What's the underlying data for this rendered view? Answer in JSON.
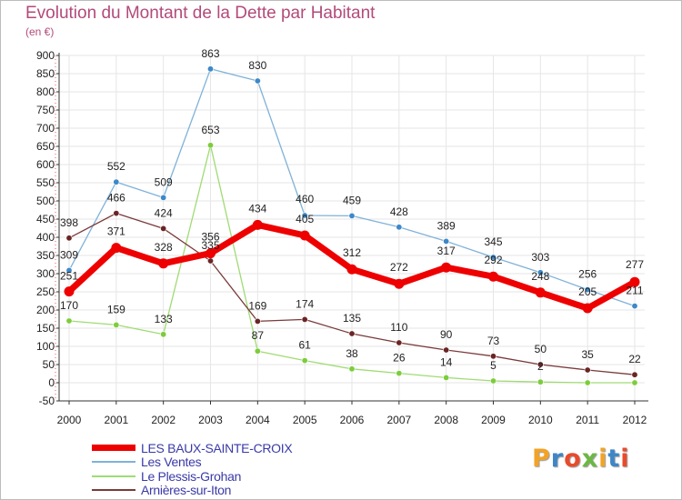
{
  "header": {
    "title": "Evolution du Montant de la Dette par Habitant",
    "subtitle": "(en €)"
  },
  "logo": {
    "text": "Proxiti",
    "letter_colors": [
      "#f2a326",
      "#3e86c8",
      "#e84b2c",
      "#6cb843",
      "#f2a326",
      "#3e86c8",
      "#e84b2c"
    ]
  },
  "colors": {
    "axis": "#333333",
    "grid": "#e6e6e6",
    "tick_text": "#222222",
    "dotted_axis": "#e85a5a"
  },
  "chart_data": {
    "type": "line",
    "title": "Evolution du Montant de la Dette par Habitant",
    "subtitle": "(en €)",
    "xlabel": "",
    "ylabel": "",
    "x": [
      "2000",
      "2001",
      "2002",
      "2003",
      "2004",
      "2005",
      "2006",
      "2007",
      "2008",
      "2009",
      "2010",
      "2011",
      "2012"
    ],
    "ylim": [
      -50,
      900
    ],
    "yticks": [
      -50,
      0,
      50,
      100,
      150,
      200,
      250,
      300,
      350,
      400,
      450,
      500,
      550,
      600,
      650,
      700,
      750,
      800,
      850,
      900
    ],
    "grid": true,
    "legend_position": "bottom-left",
    "series": [
      {
        "name": "Les Ventes",
        "color": "#7fb2d9",
        "marker_color": "#3d88c9",
        "line_width": 1.3,
        "marker_radius": 3.2,
        "values": [
          309,
          552,
          509,
          863,
          830,
          460,
          459,
          428,
          389,
          345,
          303,
          256,
          211
        ]
      },
      {
        "name": "Le Plessis-Grohan",
        "color": "#a0db74",
        "marker_color": "#7ccd3c",
        "line_width": 1.3,
        "marker_radius": 3.2,
        "values": [
          170,
          159,
          133,
          653,
          87,
          61,
          38,
          26,
          14,
          5,
          2,
          0,
          0
        ]
      },
      {
        "name": "Arnières-sur-Iton",
        "color": "#7a3a3a",
        "marker_color": "#6b2424",
        "line_width": 1.3,
        "marker_radius": 3.2,
        "values": [
          398,
          466,
          424,
          335,
          169,
          174,
          135,
          110,
          90,
          73,
          50,
          35,
          22
        ]
      },
      {
        "name": "LES BAUX-SAINTE-CROIX",
        "color": "#ee0000",
        "marker_color": "#ee0000",
        "line_width": 7,
        "marker_radius": 5.5,
        "values": [
          251,
          371,
          328,
          356,
          434,
          405,
          312,
          272,
          317,
          292,
          248,
          205,
          277
        ]
      }
    ],
    "data_labels": [
      {
        "series": 0,
        "labels": [
          "309",
          "552",
          "509",
          "863",
          "830",
          "460",
          "459",
          "428",
          "389",
          "345",
          "303",
          "256",
          "211"
        ],
        "dy": [
          -13,
          -13,
          -13,
          -13,
          -13,
          -14,
          -13,
          -13,
          -13,
          -13,
          -13,
          -13,
          -13
        ]
      },
      {
        "series": 1,
        "labels": [
          "170",
          "159",
          "133",
          "653",
          "87",
          "61",
          "38",
          "26",
          "14",
          "5",
          "2",
          "",
          ""
        ],
        "dy": [
          -13,
          -13,
          -13,
          -13,
          -13,
          -13,
          -13,
          -13,
          -13,
          -13,
          -13,
          0,
          0
        ]
      },
      {
        "series": 2,
        "labels": [
          "398",
          "466",
          "424",
          "335",
          "169",
          "174",
          "135",
          "110",
          "90",
          "73",
          "50",
          "35",
          "22"
        ],
        "dy": [
          -13,
          -13,
          -13,
          -13,
          -13,
          -13,
          -13,
          -13,
          -13,
          -13,
          -13,
          -13,
          -13
        ]
      },
      {
        "series": 3,
        "labels": [
          "251",
          "371",
          "328",
          "356",
          "434",
          "405",
          "312",
          "272",
          "317",
          "292",
          "248",
          "205",
          "277"
        ],
        "dy": [
          -13,
          -14,
          -14,
          -14,
          -14,
          -14,
          -14,
          -14,
          -14,
          -14,
          -14,
          -14,
          -15
        ]
      }
    ]
  },
  "legend": {
    "items": [
      {
        "label": "LES BAUX-SAINTE-CROIX",
        "color": "#ee0000",
        "thickness": 7
      },
      {
        "label": "Les Ventes",
        "color": "#7fb2d9",
        "thickness": 2
      },
      {
        "label": "Le Plessis-Grohan",
        "color": "#a0db74",
        "thickness": 2
      },
      {
        "label": "Arnières-sur-Iton",
        "color": "#7a3a3a",
        "thickness": 2
      }
    ]
  }
}
